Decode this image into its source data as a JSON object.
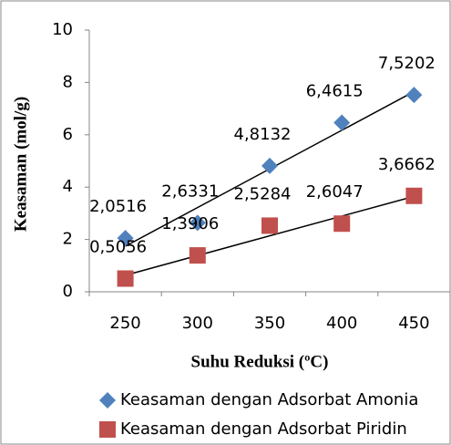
{
  "chart_data": {
    "type": "line",
    "x_label": "Suhu Reduksi (ºC)",
    "y_label": "Keasaman (mol/g)",
    "categories": [
      "250",
      "300",
      "350",
      "400",
      "450"
    ],
    "series": [
      {
        "name": "Keasaman dengan Adsorbat Amonia",
        "color": "#4f81bd",
        "marker": "diamond",
        "values": [
          2.0516,
          2.6331,
          4.8132,
          6.4615,
          7.5202
        ],
        "value_labels": [
          "2,0516",
          "2,6331",
          "4,8132",
          "6,4615",
          "7,5202"
        ]
      },
      {
        "name": "Keasaman dengan Adsorbat Piridin",
        "color": "#c0504d",
        "marker": "square",
        "values": [
          0.5056,
          1.3906,
          2.5284,
          2.6047,
          3.6662
        ],
        "value_labels": [
          "0,5056",
          "1,3906",
          "2,5284",
          "2,6047",
          "3,6662"
        ]
      }
    ],
    "trendline": "linear",
    "ylim": [
      0,
      10
    ],
    "yticks": [
      0,
      2,
      4,
      6,
      8,
      10
    ],
    "grid": false,
    "legend": "bottom"
  }
}
